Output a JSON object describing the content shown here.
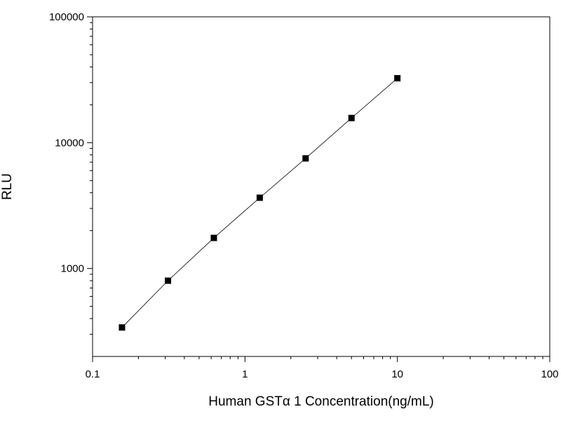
{
  "chart_data": {
    "type": "scatter",
    "title": "",
    "xlabel": "Human  GSTα 1  Concentration(ng/mL)",
    "ylabel": "RLU",
    "xscale": "log",
    "yscale": "log",
    "xlim": [
      0.1,
      100
    ],
    "ylim": [
      200,
      100000
    ],
    "xticks": [
      {
        "value": 0.1,
        "label": "0.1"
      },
      {
        "value": 1,
        "label": "1"
      },
      {
        "value": 10,
        "label": "10"
      },
      {
        "value": 100,
        "label": "100"
      }
    ],
    "yticks": [
      {
        "value": 1000,
        "label": "1000"
      },
      {
        "value": 10000,
        "label": "10000"
      },
      {
        "value": 100000,
        "label": "100000"
      }
    ],
    "grid": false,
    "series": [
      {
        "marker": "square",
        "color": "#000000",
        "fit_line": true,
        "points": [
          {
            "x": 0.156,
            "y": 340
          },
          {
            "x": 0.3125,
            "y": 800
          },
          {
            "x": 0.625,
            "y": 1750
          },
          {
            "x": 1.25,
            "y": 3650
          },
          {
            "x": 2.5,
            "y": 7500
          },
          {
            "x": 5,
            "y": 15700
          },
          {
            "x": 10,
            "y": 32500
          }
        ]
      }
    ]
  }
}
